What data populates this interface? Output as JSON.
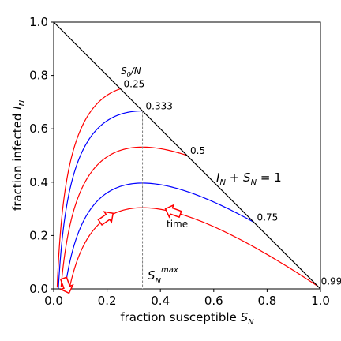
{
  "chart_data": {
    "type": "line",
    "xlabel": "fraction susceptible",
    "xlabel_sub": "N",
    "xlabel_var": "S",
    "ylabel": "fraction infected",
    "ylabel_var": "I",
    "ylabel_sub": "N",
    "xlim": [
      0.0,
      1.0
    ],
    "ylim": [
      0.0,
      1.0
    ],
    "xticks": [
      "0.0",
      "0.2",
      "0.4",
      "0.6",
      "0.8",
      "1.0"
    ],
    "yticks": [
      "0.0",
      "0.2",
      "0.4",
      "0.6",
      "0.8",
      "1.0"
    ],
    "s_max": 0.333,
    "curve_label_title": "S0/N",
    "series": [
      {
        "s0_label": "0.25",
        "s0": 0.25,
        "color": "#ff0000"
      },
      {
        "s0_label": "0.333",
        "s0": 0.333,
        "color": "#0000ff"
      },
      {
        "s0_label": "0.5",
        "s0": 0.5,
        "color": "#ff0000"
      },
      {
        "s0_label": "0.75",
        "s0": 0.75,
        "color": "#0000ff"
      },
      {
        "s0_label": "0.99",
        "s0": 0.99,
        "color": "#ff0000"
      }
    ],
    "boundary_label": "I_N + S_N = 1",
    "smax_label": "S_N^max",
    "time_label": "time",
    "colors": {
      "red": "#ff0000",
      "blue": "#0000ff",
      "boundary": "#000000",
      "guide": "#808080"
    }
  }
}
